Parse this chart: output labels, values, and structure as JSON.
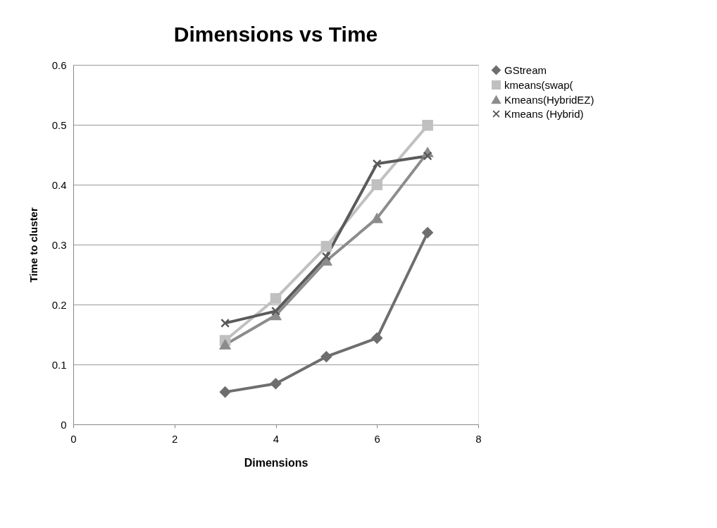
{
  "chart_data": {
    "type": "line",
    "title": "Dimensions vs Time",
    "xlabel": "Dimensions",
    "ylabel": "Time to cluster",
    "x": [
      3,
      4,
      5,
      6,
      7
    ],
    "series": [
      {
        "name": "GStream",
        "color": "#6e6e6e",
        "marker": "diamond",
        "values": [
          0.054,
          0.068,
          0.113,
          0.144,
          0.32
        ]
      },
      {
        "name": "kmeans(swap(",
        "color": "#c0c0c0",
        "marker": "square",
        "values": [
          0.14,
          0.21,
          0.297,
          0.4,
          0.499
        ]
      },
      {
        "name": "Kmeans(HybridEZ)",
        "color": "#8c8c8c",
        "marker": "triangle",
        "values": [
          0.133,
          0.182,
          0.273,
          0.344,
          0.454
        ]
      },
      {
        "name": "Kmeans (Hybrid)",
        "color": "#5a5a5a",
        "marker": "cross",
        "values": [
          0.169,
          0.189,
          0.28,
          0.435,
          0.448
        ]
      }
    ],
    "xlim": [
      0,
      8
    ],
    "xticks": [
      0,
      2,
      4,
      6,
      8
    ],
    "ylim": [
      0,
      0.6
    ],
    "yticks": [
      0,
      0.1,
      0.2,
      0.3,
      0.4,
      0.5,
      0.6
    ],
    "grid": "y",
    "legend": "right",
    "line_style": "solid"
  }
}
